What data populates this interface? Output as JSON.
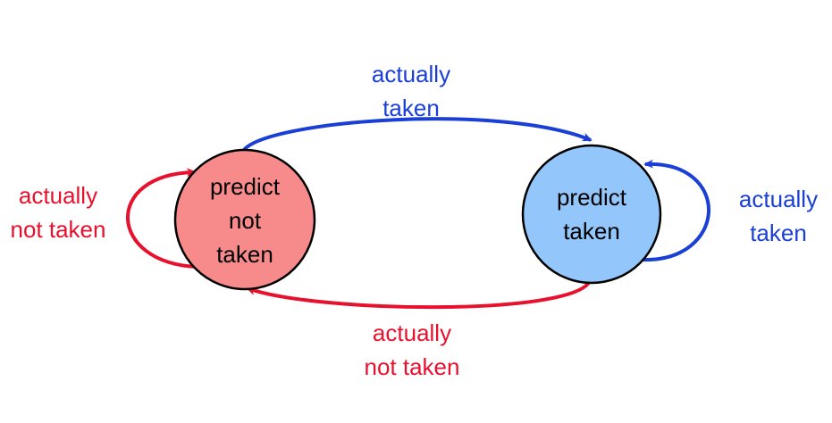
{
  "states": {
    "not_taken": {
      "lines": [
        "predict",
        "not",
        "taken"
      ],
      "fill": "#f78b8b"
    },
    "taken": {
      "lines": [
        "predict",
        "taken"
      ],
      "fill": "#93c6fb"
    }
  },
  "transitions": {
    "top": {
      "lines": [
        "actually",
        "taken"
      ]
    },
    "bottom": {
      "lines": [
        "actually",
        "not taken"
      ]
    },
    "self_not_taken": {
      "lines": [
        "actually",
        "not taken"
      ]
    },
    "self_taken": {
      "lines": [
        "actually",
        "taken"
      ]
    }
  },
  "colors": {
    "taken_arrow": "#1a3fd6",
    "not_taken_arrow": "#e8112d",
    "outline": "#000000"
  }
}
